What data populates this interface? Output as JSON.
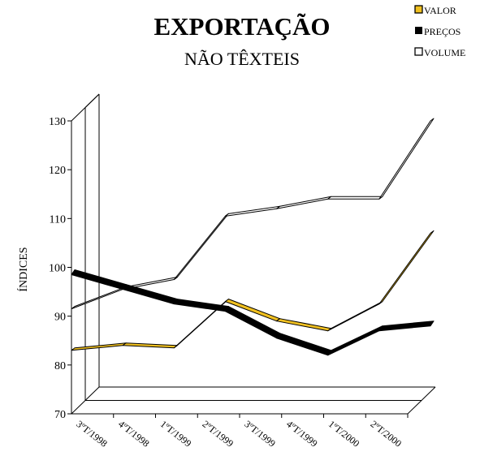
{
  "chart_data": {
    "type": "line",
    "title": "EXPORTAÇÃO",
    "subtitle": "NÃO TÊXTEIS",
    "ylabel": "ÍNDICES",
    "xlabel": "",
    "ylim": [
      70,
      130
    ],
    "yticks": [
      70,
      80,
      90,
      100,
      110,
      120,
      130
    ],
    "categories": [
      "3ºT/1998",
      "4ºT/1998",
      "1ºT/1999",
      "2ºT/1999",
      "3ºT/1999",
      "4ºT/1999",
      "1ºT/2000",
      "2ºT/2000"
    ],
    "legend_position": "top-right",
    "grid": false,
    "series": [
      {
        "name": "VALOR",
        "color": "#f0c020",
        "values": [
          83,
          84,
          83.5,
          93,
          89,
          87,
          92.5,
          107
        ]
      },
      {
        "name": "PREÇOS",
        "color": "#000000",
        "values": [
          98.5,
          95.5,
          92.5,
          91,
          85.5,
          82,
          87,
          88
        ]
      },
      {
        "name": "VOLUME",
        "color": "#ffffff",
        "values": [
          91.5,
          95.5,
          97.5,
          110.5,
          112,
          114,
          114,
          130
        ]
      }
    ]
  }
}
